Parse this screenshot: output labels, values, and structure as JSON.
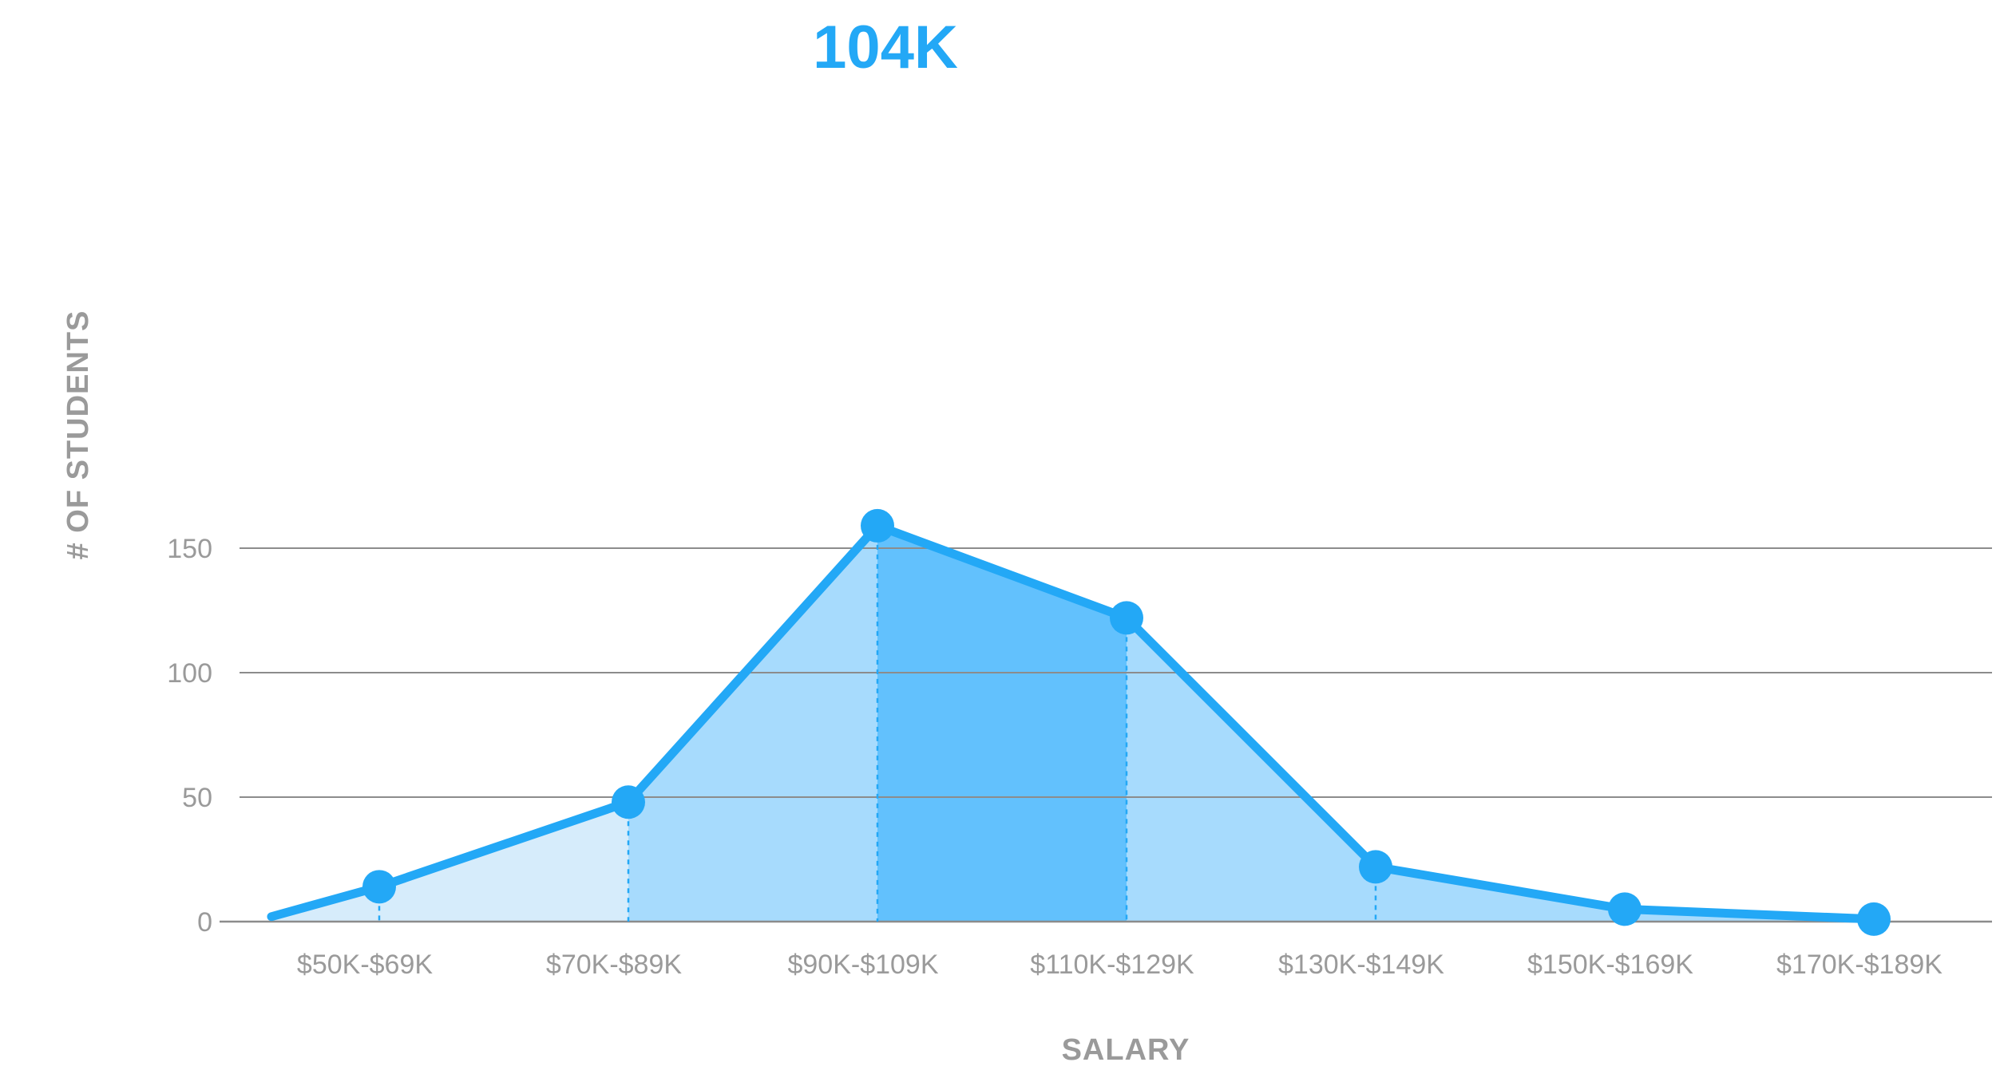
{
  "chart_data": {
    "type": "area",
    "categories": [
      "$50K-$69K",
      "$70K-$89K",
      "$90K-$109K",
      "$110K-$129K",
      "$130K-$149K",
      "$150K-$169K",
      "$170K-$189K"
    ],
    "values": [
      14,
      48,
      159,
      122,
      22,
      5,
      1
    ],
    "start_value": 2,
    "xlabel": "SALARY",
    "ylabel": "# OF STUDENTS",
    "ylim": [
      0,
      165
    ],
    "yticks": [
      0,
      50,
      100,
      150
    ],
    "grid": true,
    "annotation": "104K",
    "colors": {
      "line": "#23a8f6",
      "fill_light": "#d6ecfb",
      "fill_mid": "#a7dbfd",
      "fill_dark": "#62c1fd",
      "grid": "#8c8c8c",
      "text": "#9a9a9a"
    }
  }
}
